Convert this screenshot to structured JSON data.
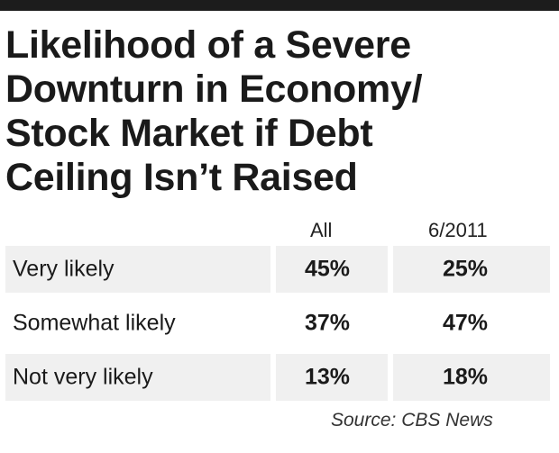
{
  "chart_data": {
    "type": "table",
    "title": "Likelihood of a Severe Downturn in Economy/ Stock Market if Debt Ceiling Isn’t Raised",
    "title_lines": [
      "Likelihood of a Severe",
      "Downturn in Economy/",
      "Stock Market if Debt",
      "Ceiling Isn’t Raised"
    ],
    "columns": [
      "All",
      "6/2011"
    ],
    "rows": [
      {
        "label": "Very likely",
        "values": [
          "45%",
          "25%"
        ]
      },
      {
        "label": "Somewhat likely",
        "values": [
          "37%",
          "47%"
        ]
      },
      {
        "label": "Not very likely",
        "values": [
          "13%",
          "18%"
        ]
      }
    ],
    "source": "Source: CBS News"
  },
  "colors": {
    "top_bar": "#1c1c1c",
    "row_shade": "#f0f0f0",
    "text": "#1a1a1a"
  }
}
